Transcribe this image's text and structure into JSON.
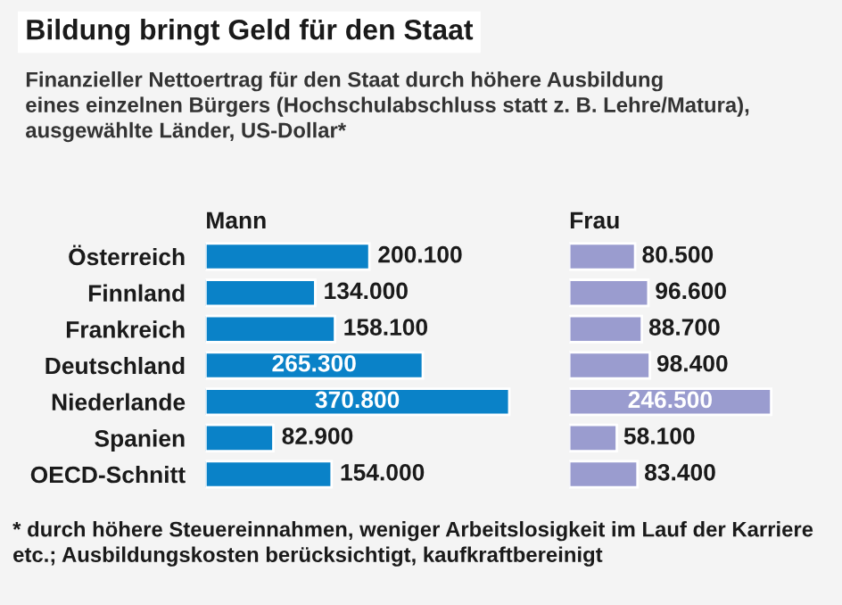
{
  "chart_data": [
    {
      "type": "bar",
      "orientation": "horizontal",
      "title": "Mann",
      "categories": [
        "Österreich",
        "Finnland",
        "Frankreich",
        "Deutschland",
        "Niederlande",
        "Spanien",
        "OECD-Schnitt"
      ],
      "series": [
        {
          "color": "#0a82c8",
          "values": [
            200100,
            134000,
            158100,
            265300,
            370800,
            82900,
            154000
          ],
          "value_labels": [
            "200.100",
            "134.000",
            "158.100",
            "265.300",
            "370.800",
            "82.900",
            "154.000"
          ]
        }
      ],
      "tick_labels": "y",
      "annotations": [
        "Bildung bringt Geld für den Staat",
        "Finanzieller Nettoertrag für den Staat durch höhere Ausbildung\neines einzelnen Bürgers (Hochschulabschluss statt z. B. Lehre/Matura),\nausgewählte Länder, US-Dollar*",
        "* durch höhere Steuereinnahmen, weniger Arbeitslosigkeit im Lauf der Karriere etc.; Ausbildungskosten berücksichtigt, kaufkraftbereinigt"
      ]
    },
    {
      "type": "bar",
      "orientation": "horizontal",
      "title": "Frau",
      "categories": [
        null,
        null,
        null,
        null,
        null,
        null,
        null
      ],
      "series": [
        {
          "color": "#9a9ccf",
          "values": [
            80500,
            96600,
            88700,
            98400,
            246500,
            58100,
            83400
          ],
          "value_labels": [
            "80.500",
            "96.600",
            "88.700",
            "98.400",
            "246.500",
            "58.100",
            "83.400"
          ]
        }
      ],
      "tick_labels": false
    }
  ]
}
